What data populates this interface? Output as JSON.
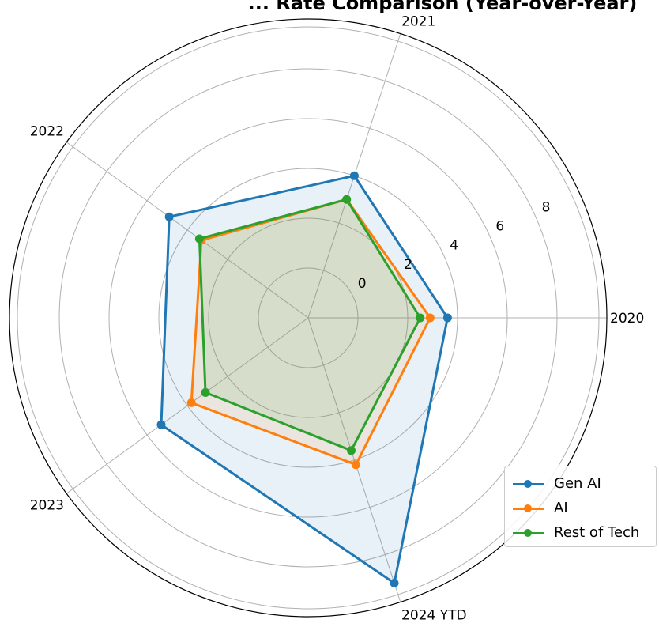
{
  "chart_data": {
    "type": "radar",
    "title": "... Rate Comparison (Year-over-Year)",
    "categories": [
      "2020",
      "2021",
      "2022",
      "2023",
      "2024 YTD"
    ],
    "radial_ticks": [
      "0",
      "2",
      "4",
      "6",
      "8"
    ],
    "rlim": [
      -2,
      10
    ],
    "grid": true,
    "legend_position": "lower-right",
    "series": [
      {
        "name": "Gen AI",
        "color": "#1f77b4",
        "values": [
          3.6,
          4.0,
          4.9,
          5.3,
          9.2
        ]
      },
      {
        "name": "AI",
        "color": "#ff7f0e",
        "values": [
          2.9,
          3.0,
          3.3,
          3.8,
          4.2
        ]
      },
      {
        "name": "Rest of Tech",
        "color": "#2ca02c",
        "values": [
          2.5,
          3.0,
          3.4,
          3.1,
          3.6
        ]
      }
    ]
  }
}
